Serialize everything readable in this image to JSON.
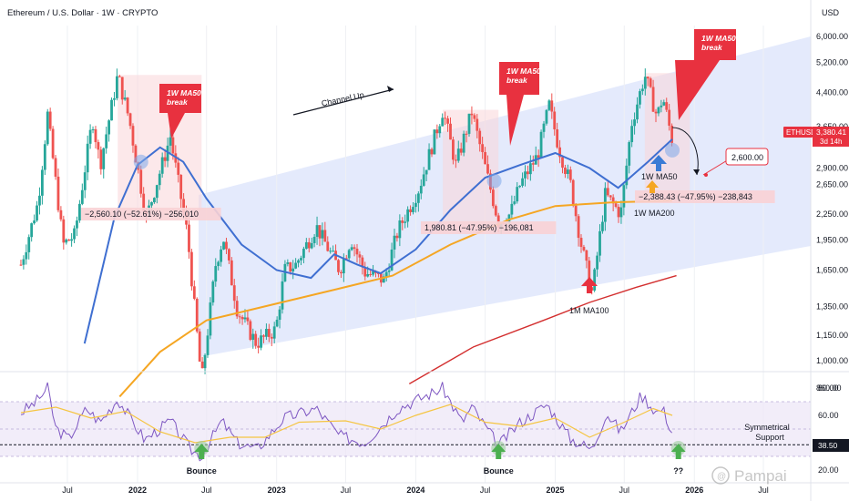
{
  "header": {
    "symbol_title": "Ethereum / U.S. Dollar · 1W · CRYPTO",
    "currency": "USD"
  },
  "price_labels": {
    "last_symbol": "ETHUSD",
    "last_price": "3,380.41",
    "countdown": "3d 14h",
    "rsi_value": "38.50"
  },
  "chart_data": [
    {
      "type": "line",
      "title": "",
      "y_scale": "log",
      "ylim": [
        780,
        7000
      ],
      "y_ticks": [
        "6,000.00",
        "5,200.00",
        "4,400.00",
        "3,650.00",
        "2,900.00",
        "2,650.00",
        "2,250.00",
        "1,950.00",
        "1,650.00",
        "1,350.00",
        "1,150.00",
        "1,000.00",
        "860.00"
      ],
      "x_ticks": [
        "Jul",
        "2022",
        "Jul",
        "2023",
        "Jul",
        "2024",
        "Jul",
        "2025",
        "Jul",
        "2026",
        "Jul"
      ],
      "x_tick_dates": [
        "2021-07-01",
        "2022-01-01",
        "2022-07-01",
        "2023-01-01",
        "2023-07-01",
        "2024-01-01",
        "2024-07-01",
        "2025-01-01",
        "2025-07-01",
        "2026-01-01",
        "2026-07-01"
      ],
      "series": [
        {
          "name": "1W MA50",
          "color": "#3f6fd1"
        },
        {
          "name": "1W MA200",
          "color": "#f5a623"
        },
        {
          "name": "1M MA100",
          "color": "#d32f2f"
        }
      ],
      "price_path": [
        [
          "2021-03-01",
          1700
        ],
        [
          "2021-04-15",
          2400
        ],
        [
          "2021-05-10",
          3900
        ],
        [
          "2021-06-20",
          1900
        ],
        [
          "2021-07-20",
          2000
        ],
        [
          "2021-09-05",
          3800
        ],
        [
          "2021-09-25",
          2950
        ],
        [
          "2021-11-10",
          4850
        ],
        [
          "2021-12-10",
          3800
        ],
        [
          "2022-01-24",
          2200
        ],
        [
          "2022-03-28",
          3450
        ],
        [
          "2022-05-12",
          2000
        ],
        [
          "2022-06-18",
          890
        ],
        [
          "2022-07-25",
          1700
        ],
        [
          "2022-08-14",
          1980
        ],
        [
          "2022-09-20",
          1320
        ],
        [
          "2022-11-09",
          1100
        ],
        [
          "2022-12-30",
          1190
        ],
        [
          "2023-01-22",
          1650
        ],
        [
          "2023-02-20",
          1700
        ],
        [
          "2023-04-15",
          2100
        ],
        [
          "2023-06-15",
          1650
        ],
        [
          "2023-07-15",
          1960
        ],
        [
          "2023-08-20",
          1630
        ],
        [
          "2023-10-10",
          1560
        ],
        [
          "2023-11-15",
          2050
        ],
        [
          "2024-01-10",
          2600
        ],
        [
          "2024-03-12",
          4000
        ],
        [
          "2024-04-15",
          2950
        ],
        [
          "2024-05-27",
          3950
        ],
        [
          "2024-08-05",
          2150
        ],
        [
          "2024-09-05",
          2250
        ],
        [
          "2024-10-01",
          2650
        ],
        [
          "2024-11-15",
          3100
        ],
        [
          "2024-12-16",
          4100
        ],
        [
          "2025-01-10",
          3250
        ],
        [
          "2025-02-10",
          2650
        ],
        [
          "2025-03-10",
          1900
        ],
        [
          "2025-04-08",
          1450
        ],
        [
          "2025-05-12",
          2500
        ],
        [
          "2025-06-22",
          2250
        ],
        [
          "2025-07-20",
          3700
        ],
        [
          "2025-08-24",
          4850
        ],
        [
          "2025-09-25",
          3850
        ],
        [
          "2025-10-10",
          4300
        ],
        [
          "2025-11-04",
          3380
        ]
      ],
      "ma50_path": [
        [
          "2021-08-15",
          1100
        ],
        [
          "2021-11-01",
          2200
        ],
        [
          "2022-01-01",
          2950
        ],
        [
          "2022-03-01",
          3250
        ],
        [
          "2022-05-01",
          3000
        ],
        [
          "2022-07-01",
          2450
        ],
        [
          "2022-10-01",
          1900
        ],
        [
          "2023-01-01",
          1650
        ],
        [
          "2023-04-01",
          1580
        ],
        [
          "2023-06-01",
          1800
        ],
        [
          "2023-08-01",
          1700
        ],
        [
          "2023-10-01",
          1620
        ],
        [
          "2024-01-01",
          1850
        ],
        [
          "2024-04-01",
          2300
        ],
        [
          "2024-07-01",
          2750
        ],
        [
          "2024-10-01",
          2950
        ],
        [
          "2025-01-01",
          3150
        ],
        [
          "2025-04-01",
          2900
        ],
        [
          "2025-06-15",
          2600
        ],
        [
          "2025-09-01",
          3000
        ],
        [
          "2025-11-04",
          3400
        ]
      ],
      "ma200_path": [
        [
          "2021-11-15",
          820
        ],
        [
          "2022-03-01",
          1050
        ],
        [
          "2022-07-01",
          1250
        ],
        [
          "2022-12-01",
          1350
        ],
        [
          "2023-06-01",
          1480
        ],
        [
          "2023-11-01",
          1600
        ],
        [
          "2024-04-01",
          1900
        ],
        [
          "2024-09-01",
          2180
        ],
        [
          "2025-01-01",
          2350
        ],
        [
          "2025-06-01",
          2400
        ],
        [
          "2025-11-04",
          2420
        ]
      ],
      "mma100_path": [
        [
          "2023-12-15",
          880
        ],
        [
          "2024-06-01",
          1080
        ],
        [
          "2024-12-01",
          1250
        ],
        [
          "2025-04-01",
          1380
        ],
        [
          "2025-08-01",
          1500
        ],
        [
          "2025-11-15",
          1600
        ]
      ],
      "annotations": {
        "channel_label": "Channel Up",
        "break_1": [
          "1W MA50",
          "break"
        ],
        "break_2": [
          "1W MA50",
          "break"
        ],
        "break_3": [
          "1W MA50",
          "break"
        ],
        "measure_1": "−2,560.10 (−52.61%) −256,010",
        "measure_2": "1,980.81 (−47.95%) −196,081",
        "measure_3": "−2,388.43 (−47.95%) −238,843",
        "target": "2,600.00",
        "ma50_label": "1W MA50",
        "ma200_label": "1W MA200",
        "mma100_label": "1M MA100"
      }
    },
    {
      "type": "line",
      "title": "",
      "ylim": [
        15,
        90
      ],
      "y_ticks": [
        "80.00",
        "60.00",
        "40.00",
        "20.00"
      ],
      "support_level": 38.5,
      "support_label": [
        "Symmetrical",
        "Support"
      ],
      "band": [
        30,
        70
      ],
      "series": [
        {
          "color": "#7e57c2"
        },
        {
          "color": "#f5c542"
        }
      ],
      "rsi_path": [
        [
          "2021-03-01",
          62
        ],
        [
          "2021-04-10",
          70
        ],
        [
          "2021-05-10",
          80
        ],
        [
          "2021-06-01",
          50
        ],
        [
          "2021-07-05",
          43
        ],
        [
          "2021-08-20",
          65
        ],
        [
          "2021-09-25",
          55
        ],
        [
          "2021-11-10",
          72
        ],
        [
          "2022-01-20",
          42
        ],
        [
          "2022-03-28",
          56
        ],
        [
          "2022-05-20",
          35
        ],
        [
          "2022-06-18",
          30
        ],
        [
          "2022-08-10",
          56
        ],
        [
          "2022-09-20",
          40
        ],
        [
          "2022-11-10",
          35
        ],
        [
          "2023-01-20",
          58
        ],
        [
          "2023-04-15",
          65
        ],
        [
          "2023-06-15",
          45
        ],
        [
          "2023-08-20",
          40
        ],
        [
          "2023-11-15",
          65
        ],
        [
          "2024-03-12",
          80
        ],
        [
          "2024-05-01",
          55
        ],
        [
          "2024-05-27",
          66
        ],
        [
          "2024-08-05",
          38
        ],
        [
          "2024-10-01",
          55
        ],
        [
          "2024-12-10",
          68
        ],
        [
          "2025-02-10",
          43
        ],
        [
          "2025-04-08",
          35
        ],
        [
          "2025-05-15",
          62
        ],
        [
          "2025-06-22",
          48
        ],
        [
          "2025-08-15",
          75
        ],
        [
          "2025-09-25",
          62
        ],
        [
          "2025-10-10",
          65
        ],
        [
          "2025-11-04",
          47
        ]
      ],
      "rsi_ma_path": [
        [
          "2021-03-01",
          62
        ],
        [
          "2021-06-01",
          66
        ],
        [
          "2021-09-01",
          58
        ],
        [
          "2021-12-01",
          63
        ],
        [
          "2022-03-01",
          48
        ],
        [
          "2022-06-01",
          40
        ],
        [
          "2022-09-01",
          44
        ],
        [
          "2022-12-01",
          44
        ],
        [
          "2023-03-01",
          55
        ],
        [
          "2023-07-01",
          56
        ],
        [
          "2023-10-01",
          50
        ],
        [
          "2024-01-01",
          60
        ],
        [
          "2024-04-01",
          68
        ],
        [
          "2024-07-01",
          55
        ],
        [
          "2024-10-01",
          52
        ],
        [
          "2025-01-01",
          58
        ],
        [
          "2025-04-01",
          44
        ],
        [
          "2025-07-01",
          55
        ],
        [
          "2025-09-15",
          65
        ],
        [
          "2025-11-04",
          60
        ]
      ],
      "bounce_labels": [
        "Bounce",
        "Bounce",
        "??"
      ],
      "bounce_dates": [
        "2022-06-18",
        "2024-08-05",
        "2025-11-20"
      ]
    }
  ],
  "watermark": "Pampai",
  "colors": {
    "up": "#26a69a",
    "down": "#ef5350",
    "channel": "#dfe6fb",
    "annotation_red": "#e8313f",
    "ma50": "#3f6fd1",
    "ma200": "#f5a623",
    "mma100": "#d32f2f",
    "rsi": "#7e57c2",
    "rsi_ma": "#f5c542",
    "arrow_green": "#4caf50",
    "arrow_blue": "#3a7bd5"
  }
}
